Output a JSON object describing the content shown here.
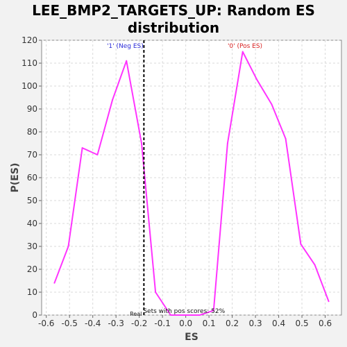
{
  "chart_data": {
    "type": "line",
    "title": "LEE_BMP2_TARGETS_UP: Random ES distribution",
    "title_lines": [
      "LEE_BMP2_TARGETS_UP: Random ES",
      "distribution"
    ],
    "xlabel": "ES",
    "ylabel": "P(ES)",
    "xlim": [
      -0.62,
      0.67
    ],
    "ylim": [
      0,
      120
    ],
    "x_ticks": [
      -0.6,
      -0.5,
      -0.4,
      -0.3,
      -0.2,
      -0.1,
      0.0,
      0.1,
      0.2,
      0.3,
      0.4,
      0.5,
      0.6
    ],
    "x_tick_labels": [
      "-0.6",
      "-0.5",
      "-0.4",
      "-0.3",
      "-0.2",
      "-0.1",
      "0.0",
      "0.1",
      "0.2",
      "0.3",
      "0.4",
      "0.5",
      "0.6"
    ],
    "y_ticks": [
      0,
      10,
      20,
      30,
      40,
      50,
      60,
      70,
      80,
      90,
      100,
      110,
      120
    ],
    "y_tick_labels": [
      "0",
      "10",
      "20",
      "30",
      "40",
      "50",
      "60",
      "70",
      "80",
      "90",
      "100",
      "110",
      "120"
    ],
    "grid": true,
    "series": [
      {
        "color": "#ff33ff",
        "x": [
          -0.565,
          -0.505,
          -0.445,
          -0.38,
          -0.315,
          -0.255,
          -0.19,
          -0.13,
          -0.065,
          0.0,
          0.06,
          0.12,
          0.18,
          0.245,
          0.305,
          0.37,
          0.43,
          0.495,
          0.555,
          0.615
        ],
        "y": [
          14,
          30,
          73,
          70,
          94,
          111,
          75,
          10,
          0,
          0,
          0,
          2,
          75,
          115,
          103,
          92,
          77,
          31,
          22,
          6
        ]
      }
    ],
    "vline": {
      "x": -0.18,
      "style": "dashed",
      "color": "#000000"
    },
    "annotations": {
      "neg_label": "'1' (Neg ES)",
      "pos_label": "'0' (Pos ES)",
      "pos_scores": "Sets with pos scores: 52%",
      "real_label": "Real"
    }
  }
}
